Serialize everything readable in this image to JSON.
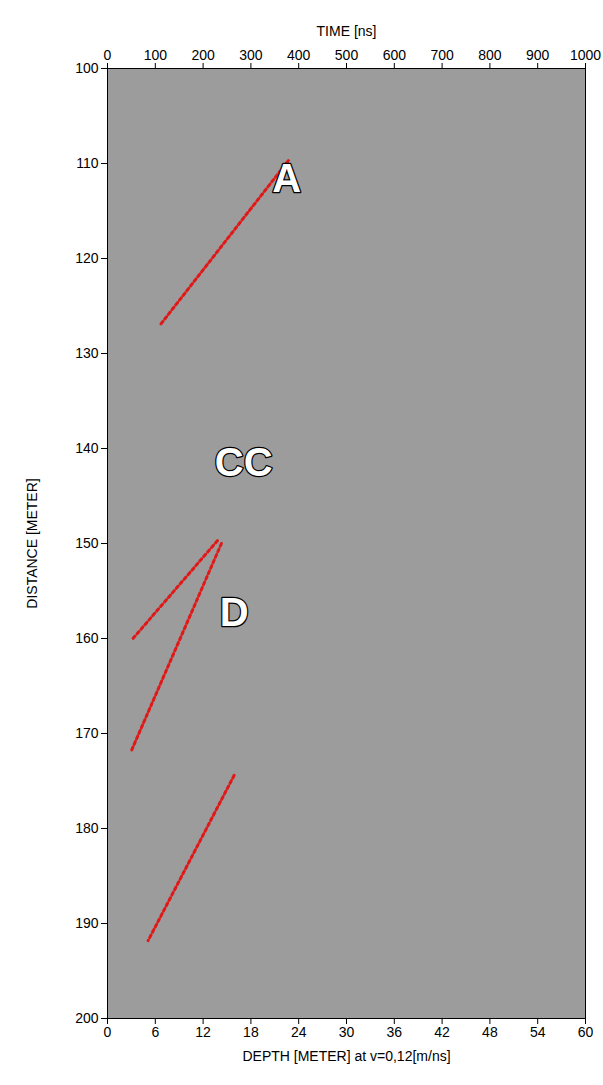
{
  "chart_data": {
    "type": "radargram",
    "xlabel": "DEPTH [METER] at v=0,12[m/ns]",
    "xlim": [
      0,
      60
    ],
    "xticks": [
      0,
      6,
      12,
      18,
      24,
      30,
      36,
      42,
      48,
      54,
      60
    ],
    "x2label": "TIME [ns]",
    "x2lim": [
      0,
      1000
    ],
    "x2ticks": [
      0,
      100,
      200,
      300,
      400,
      500,
      600,
      700,
      800,
      900,
      1000
    ],
    "ylabel": "DISTANCE [METER]",
    "ylim": [
      100,
      200
    ],
    "yticks": [
      100,
      110,
      120,
      130,
      140,
      150,
      160,
      170,
      180,
      190,
      200
    ],
    "color": "#e01818",
    "line_style": "dotted",
    "lines": [
      {
        "x": [
          22.7,
          6.6
        ],
        "y": [
          109.7,
          127.0
        ]
      },
      {
        "x": [
          13.8,
          3.2
        ],
        "y": [
          149.7,
          160.0
        ]
      },
      {
        "x": [
          14.3,
          2.9
        ],
        "y": [
          150.0,
          172.0
        ]
      },
      {
        "x": [
          15.9,
          5.1
        ],
        "y": [
          174.4,
          191.8
        ]
      }
    ],
    "annotations": [
      {
        "text": "A",
        "x": 22.5,
        "y": 111.6
      },
      {
        "text": "CC",
        "x": 17.1,
        "y": 141.5
      },
      {
        "text": "D",
        "x": 15.9,
        "y": 157.3
      }
    ]
  }
}
